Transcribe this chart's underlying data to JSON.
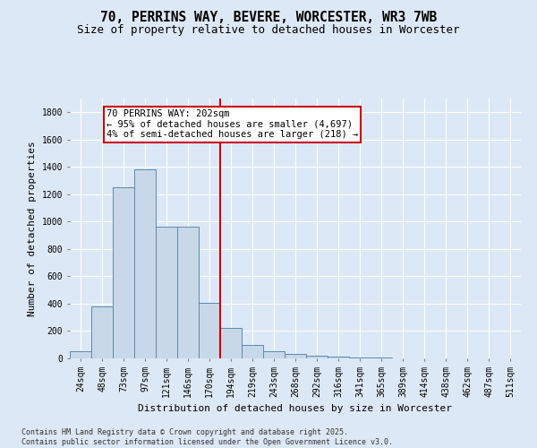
{
  "title": "70, PERRINS WAY, BEVERE, WORCESTER, WR3 7WB",
  "subtitle": "Size of property relative to detached houses in Worcester",
  "xlabel": "Distribution of detached houses by size in Worcester",
  "ylabel": "Number of detached properties",
  "categories": [
    "24sqm",
    "48sqm",
    "73sqm",
    "97sqm",
    "121sqm",
    "146sqm",
    "170sqm",
    "194sqm",
    "219sqm",
    "243sqm",
    "268sqm",
    "292sqm",
    "316sqm",
    "341sqm",
    "365sqm",
    "389sqm",
    "414sqm",
    "438sqm",
    "462sqm",
    "487sqm",
    "511sqm"
  ],
  "values": [
    50,
    380,
    1250,
    1380,
    960,
    960,
    405,
    220,
    100,
    55,
    30,
    20,
    10,
    5,
    5,
    3,
    2,
    1,
    0,
    0,
    0
  ],
  "bar_color": "#c8d8e8",
  "bar_edge_color": "#5a8ab0",
  "vline_index": 7,
  "vline_color": "#cc0000",
  "annotation_title": "70 PERRINS WAY: 202sqm",
  "annotation_line1": "← 95% of detached houses are smaller (4,697)",
  "annotation_line2": "4% of semi-detached houses are larger (218) →",
  "annotation_box_color": "#cc0000",
  "footer_line1": "Contains HM Land Registry data © Crown copyright and database right 2025.",
  "footer_line2": "Contains public sector information licensed under the Open Government Licence v3.0.",
  "background_color": "#dce8f5",
  "plot_background_color": "#dce8f5",
  "ylim": [
    0,
    1900
  ],
  "yticks": [
    0,
    200,
    400,
    600,
    800,
    1000,
    1200,
    1400,
    1600,
    1800
  ],
  "title_fontsize": 10.5,
  "subtitle_fontsize": 9,
  "tick_fontsize": 7,
  "label_fontsize": 8,
  "annotation_fontsize": 7.5
}
